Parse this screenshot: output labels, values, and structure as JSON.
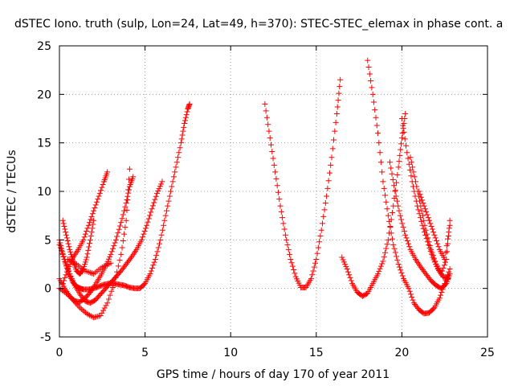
{
  "chart_data": {
    "type": "scatter",
    "title": "dSTEC Iono. truth (sulp, Lon=24, Lat=49, h=370): STEC-STEC_elemax in phase cont. a",
    "xlabel": "GPS time / hours of day 170 of year 2011",
    "ylabel": "dSTEC  / TECUs",
    "xlim": [
      0,
      25
    ],
    "ylim": [
      -5,
      25
    ],
    "xticks": [
      0,
      5,
      10,
      15,
      20,
      25
    ],
    "yticks": [
      -5,
      0,
      5,
      10,
      15,
      20,
      25
    ],
    "xtick_labels": [
      "0",
      "5",
      "10",
      "15",
      "20",
      "25"
    ],
    "ytick_labels": [
      "-5",
      "0",
      "5",
      "10",
      "15",
      "20",
      "25"
    ],
    "grid": true,
    "marker": "+",
    "color": "#ff0000",
    "series": [
      {
        "x": [
          0.0,
          0.2,
          0.4,
          0.6,
          0.8,
          1.0,
          1.2,
          1.4,
          1.7,
          2.0,
          2.3,
          2.6,
          2.9,
          3.2,
          3.5,
          3.8,
          4.1,
          4.4,
          4.7,
          5.0,
          5.3,
          5.6,
          5.9,
          6.2,
          6.5,
          6.8,
          7.1,
          7.3,
          7.5,
          7.6
        ],
        "y": [
          5.0,
          3.5,
          2.3,
          1.3,
          0.6,
          0.2,
          0.0,
          -0.1,
          -0.1,
          0.0,
          0.2,
          0.4,
          0.5,
          0.5,
          0.4,
          0.3,
          0.1,
          -0.0,
          0.0,
          0.5,
          1.5,
          3.0,
          5.0,
          7.5,
          10.0,
          12.5,
          15.0,
          17.0,
          18.5,
          19.0
        ]
      },
      {
        "x": [
          0.0,
          0.3,
          0.6,
          0.9,
          1.2,
          1.5,
          1.8,
          2.1,
          2.4,
          2.7,
          3.0,
          3.3,
          3.6,
          3.9,
          4.2,
          4.5,
          4.8,
          5.1,
          5.4,
          5.7,
          6.0
        ],
        "y": [
          4.5,
          3.0,
          1.5,
          0.3,
          -0.6,
          -1.3,
          -1.5,
          -1.2,
          -0.6,
          0.0,
          0.6,
          1.2,
          1.8,
          2.5,
          3.2,
          4.0,
          5.0,
          6.5,
          8.2,
          9.8,
          11.0
        ]
      },
      {
        "x": [
          0.0,
          0.3,
          0.6,
          0.9,
          1.2,
          1.5,
          1.8,
          2.1,
          2.4,
          2.7,
          3.0,
          3.3,
          3.6,
          3.9,
          4.1,
          4.3
        ],
        "y": [
          1.0,
          0.0,
          -0.8,
          -1.3,
          -1.4,
          -1.0,
          -0.4,
          0.4,
          1.3,
          2.3,
          3.5,
          5.0,
          6.8,
          8.8,
          10.5,
          11.5
        ]
      },
      {
        "x": [
          0.0,
          0.4,
          0.8,
          1.2,
          1.6,
          2.0,
          2.4,
          2.8,
          3.2,
          3.6,
          3.9,
          4.1
        ],
        "y": [
          0.0,
          -0.5,
          -1.2,
          -2.0,
          -2.6,
          -3.0,
          -2.8,
          -1.5,
          0.5,
          3.5,
          7.0,
          12.3
        ]
      },
      {
        "x": [
          0.2,
          0.5,
          0.8,
          1.1,
          1.4,
          1.7,
          2.0,
          2.3,
          2.6,
          2.8
        ],
        "y": [
          0.5,
          2.0,
          3.2,
          4.0,
          5.0,
          6.5,
          8.0,
          9.5,
          11.0,
          12.0
        ]
      },
      {
        "x": [
          0.2,
          0.4,
          0.6,
          0.8,
          1.0,
          1.2,
          1.4,
          1.6,
          1.8,
          2.0
        ],
        "y": [
          7.0,
          5.5,
          4.0,
          2.8,
          1.8,
          1.5,
          2.0,
          3.2,
          5.0,
          7.0
        ]
      },
      {
        "x": [
          0.5,
          1.0,
          1.5,
          2.0,
          2.5,
          3.0
        ],
        "y": [
          3.0,
          2.5,
          1.8,
          1.5,
          2.2,
          2.6
        ]
      },
      {
        "x": [
          12.0,
          12.3,
          12.6,
          12.9,
          13.2,
          13.5,
          13.8,
          14.1,
          14.4,
          14.7,
          15.0,
          15.3,
          15.6,
          15.9,
          16.2,
          16.4
        ],
        "y": [
          19.0,
          15.5,
          12.0,
          8.5,
          5.5,
          3.0,
          1.2,
          0.1,
          0.1,
          1.0,
          3.0,
          6.0,
          9.5,
          13.5,
          18.0,
          21.5
        ]
      },
      {
        "x": [
          16.5,
          16.8,
          17.1,
          17.4,
          17.7,
          18.0,
          18.3,
          18.6,
          18.9,
          19.2,
          19.5,
          19.8,
          20.0,
          20.2
        ],
        "y": [
          3.2,
          2.0,
          0.5,
          -0.4,
          -0.8,
          -0.5,
          0.5,
          1.5,
          2.8,
          5.0,
          8.5,
          12.5,
          15.5,
          18.0
        ]
      },
      {
        "x": [
          18.0,
          18.3,
          18.6,
          18.9,
          19.2,
          19.5,
          19.8,
          20.1,
          20.4,
          20.7,
          21.0,
          21.3,
          21.6,
          21.9,
          22.2,
          22.5,
          22.8
        ],
        "y": [
          23.5,
          20.0,
          16.0,
          11.0,
          7.5,
          4.5,
          2.5,
          1.0,
          0.0,
          -1.5,
          -2.2,
          -2.6,
          -2.5,
          -2.0,
          -1.0,
          0.5,
          2.0
        ]
      },
      {
        "x": [
          19.3,
          19.6,
          19.9,
          20.2,
          20.5,
          20.8,
          21.1,
          21.4,
          21.7,
          22.0,
          22.3,
          22.6,
          22.8
        ],
        "y": [
          13.0,
          10.0,
          7.5,
          5.5,
          4.0,
          3.0,
          2.2,
          1.5,
          0.8,
          0.3,
          0.0,
          0.5,
          1.5
        ]
      },
      {
        "x": [
          20.0,
          20.3,
          20.6,
          20.9,
          21.2,
          21.5,
          21.8,
          22.1,
          22.4,
          22.7
        ],
        "y": [
          17.5,
          14.0,
          11.0,
          8.5,
          6.5,
          4.8,
          3.2,
          2.0,
          1.2,
          1.0
        ]
      },
      {
        "x": [
          20.5,
          20.8,
          21.1,
          21.4,
          21.7,
          22.0,
          22.3,
          22.6,
          22.8
        ],
        "y": [
          13.5,
          11.0,
          8.5,
          6.0,
          4.0,
          2.5,
          1.5,
          3.0,
          7.0
        ]
      },
      {
        "x": [
          21.0,
          21.3,
          21.6,
          21.9,
          22.2,
          22.5,
          22.8
        ],
        "y": [
          10.0,
          8.5,
          7.0,
          5.5,
          4.0,
          3.0,
          6.5
        ]
      }
    ]
  }
}
